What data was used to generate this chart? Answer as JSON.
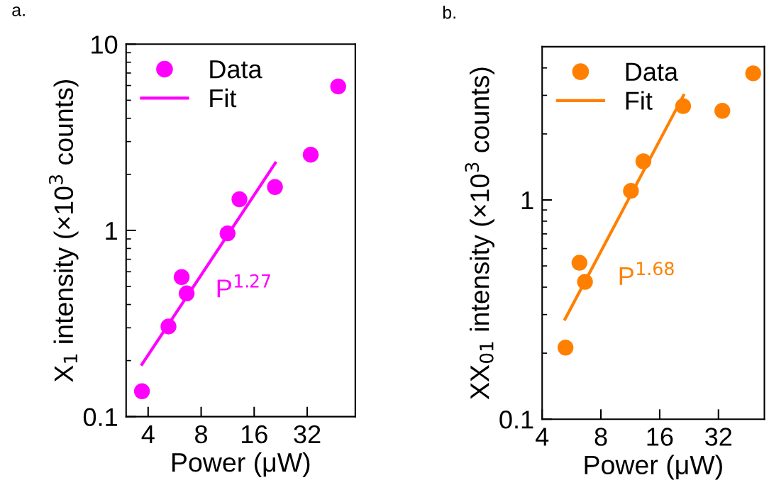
{
  "chart_data": [
    {
      "type": "scatter",
      "title": "a.",
      "xlabel": "Power (μW)",
      "ylabel": "X$_{1}$ intensity (×10$^{3}$ counts)",
      "log": "xy",
      "legend": "top left",
      "xlim": [
        3,
        60
      ],
      "xticks": [
        4,
        8,
        16,
        32
      ],
      "ylim": [
        0.1,
        10
      ],
      "yticks": [
        0.1,
        1,
        10
      ],
      "series": [
        {
          "name": "Data",
          "marker": "circle",
          "color": "#ff00ff",
          "x": [
            3.69,
            5.22,
            6.2,
            6.62,
            11.3,
            13.2,
            21.0,
            33.5,
            48.0
          ],
          "values": [
            0.137,
            0.305,
            0.562,
            0.459,
            0.964,
            1.47,
            1.71,
            2.55,
            5.93
          ]
        },
        {
          "name": "Fit",
          "type": "line",
          "color": "#ff00ff",
          "x": [
            3.69,
            21.1
          ],
          "values": [
            0.191,
            2.3
          ]
        }
      ],
      "annotations": [
        "P$^{1.27}$"
      ]
    },
    {
      "type": "scatter",
      "title": "b.",
      "xlabel": "Power (μW)",
      "ylabel": "XX$_{01}$ intensity (×10$^{3}$ counts)",
      "log": "xy",
      "legend": "top left",
      "xlim": [
        4,
        55
      ],
      "xticks": [
        4,
        8,
        16,
        32
      ],
      "ylim": [
        0.1,
        5
      ],
      "yticks": [
        0.1,
        1
      ],
      "series": [
        {
          "name": "Data",
          "marker": "circle",
          "color": "#ff8000",
          "x": [
            5.27,
            6.21,
            6.63,
            11.4,
            13.2,
            21.1,
            33.5,
            48.2
          ],
          "values": [
            0.212,
            0.517,
            0.423,
            1.1,
            1.5,
            2.68,
            2.55,
            3.78
          ]
        },
        {
          "name": "Fit",
          "type": "line",
          "color": "#ff8000",
          "x": [
            5.24,
            21.2
          ],
          "values": [
            0.286,
            3.0
          ]
        }
      ],
      "annotations": [
        "P$^{1.68}$"
      ]
    }
  ]
}
